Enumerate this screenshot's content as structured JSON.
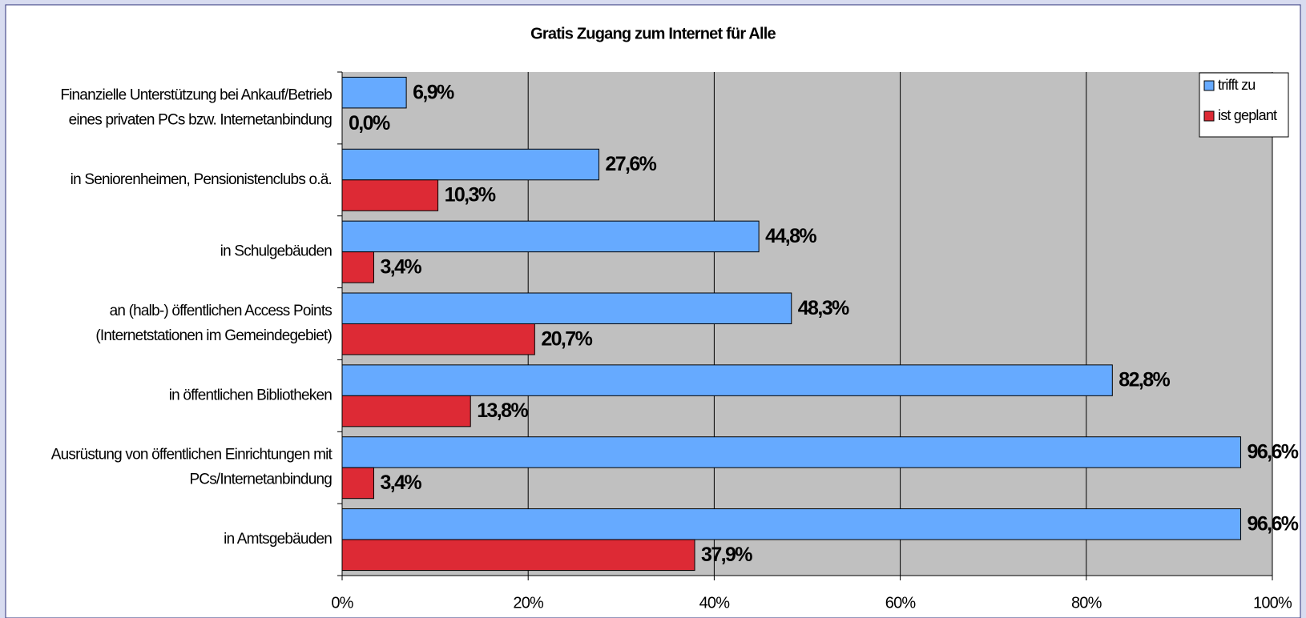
{
  "chart_data": {
    "type": "hbar",
    "title": "Gratis Zugang zum Internet für Alle",
    "categories": [
      [
        "Finanzielle Unterstützung bei Ankauf/Betrieb",
        "eines privaten PCs bzw. Internetanbindung"
      ],
      [
        "in Seniorenheimen, Pensionistenclubs o.ä."
      ],
      [
        "in Schulgebäuden"
      ],
      [
        "an (halb-) öffentlichen Access Points",
        "(Internetstationen  im Gemeindegebiet)"
      ],
      [
        "in öffentlichen Bibliotheken"
      ],
      [
        "Ausrüstung von öffentlichen Einrichtungen mit",
        "PCs/Internetanbindung"
      ],
      [
        "in Amtsgebäuden"
      ]
    ],
    "series": [
      {
        "name": "trifft zu",
        "color": "#66aaff",
        "values": [
          6.9,
          27.6,
          44.8,
          48.3,
          82.8,
          96.6,
          96.6
        ],
        "value_labels": [
          "6,9%",
          "27,6%",
          "44,8%",
          "48,3%",
          "82,8%",
          "96,6%",
          "96,6%"
        ]
      },
      {
        "name": "ist geplant",
        "color": "#dd2a35",
        "values": [
          0.0,
          10.3,
          3.4,
          20.7,
          13.8,
          3.4,
          37.9
        ],
        "value_labels": [
          "0,0%",
          "10,3%",
          "3,4%",
          "20,7%",
          "13,8%",
          "3,4%",
          "37,9%"
        ]
      }
    ],
    "xlim": [
      0,
      100
    ],
    "xticks": [
      {
        "value": 0,
        "label": "0%"
      },
      {
        "value": 20,
        "label": "20%"
      },
      {
        "value": 40,
        "label": "40%"
      },
      {
        "value": 60,
        "label": "60%"
      },
      {
        "value": 80,
        "label": "80%"
      },
      {
        "value": 100,
        "label": "100%"
      }
    ],
    "grid": true,
    "legend": "top-right"
  }
}
